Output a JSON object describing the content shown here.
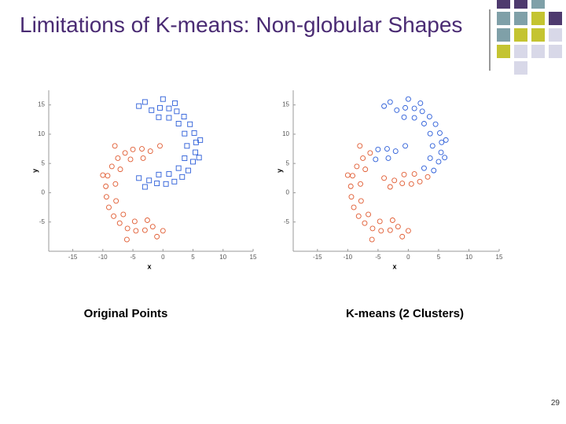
{
  "slide": {
    "title": "Limitations of K-means: Non-globular Shapes",
    "page_number": "29"
  },
  "chart_data": [
    {
      "type": "scatter",
      "caption": "Original Points",
      "xlabel": "x",
      "ylabel": "y",
      "xlim": [
        -19,
        15
      ],
      "ylim": [
        -10,
        17.5
      ],
      "xticks": [
        -15,
        -10,
        -5,
        0,
        5,
        10,
        15
      ],
      "yticks": [
        -5,
        0,
        5,
        10,
        15
      ],
      "series": [
        {
          "color": "#2a5cd8",
          "marker": "square",
          "x": [
            -1.9,
            -0.5,
            1,
            2.3,
            3.5,
            4.5,
            5.2,
            5.5,
            5.4,
            5,
            4.2,
            3.2,
            1.9,
            0.5,
            -1,
            -2.3,
            -0.7,
            1,
            2.6,
            3.6,
            4,
            3.6,
            2.6,
            1,
            -0.7,
            -4,
            -3,
            0,
            2,
            6.2,
            6,
            -3,
            -4
          ],
          "values": [
            14.1,
            14.5,
            14.4,
            13.9,
            13,
            11.7,
            10.2,
            8.6,
            6.9,
            5.3,
            3.8,
            2.7,
            1.9,
            1.5,
            1.6,
            2.1,
            12.9,
            12.8,
            11.8,
            10.1,
            8,
            5.9,
            4.2,
            3.2,
            3.1,
            14.8,
            15.5,
            16,
            15.3,
            9,
            6,
            1,
            2.5
          ]
        },
        {
          "color": "#e05a30",
          "marker": "circle",
          "x": [
            -2.1,
            -3.5,
            -5,
            -6.3,
            -7.5,
            -8.5,
            -9.2,
            -9.5,
            -9.4,
            -9,
            -8.2,
            -7.2,
            -5.9,
            -4.5,
            -3,
            -1.7,
            -3.3,
            -5.4,
            -7.1,
            -7.9,
            -7.8,
            -6.6,
            -4.7,
            -2.6,
            -0.5,
            -1,
            0,
            -6,
            -10,
            -8
          ],
          "values": [
            7.1,
            7.5,
            7.4,
            6.8,
            5.9,
            4.5,
            2.9,
            1.1,
            -0.7,
            -2.5,
            -4,
            -5.2,
            -6.1,
            -6.5,
            -6.4,
            -5.8,
            5.9,
            5.7,
            4,
            1.5,
            -1.4,
            -3.7,
            -4.9,
            -4.7,
            8,
            -7.5,
            -6.5,
            -8,
            3,
            8
          ]
        }
      ]
    },
    {
      "type": "scatter",
      "caption": "K-means (2 Clusters)",
      "xlabel": "x",
      "ylabel": "y",
      "xlim": [
        -19,
        15
      ],
      "ylim": [
        -10,
        17.5
      ],
      "xticks": [
        -15,
        -10,
        -5,
        0,
        5,
        10,
        15
      ],
      "yticks": [
        -5,
        0,
        5,
        10,
        15
      ],
      "series": [
        {
          "color": "#2a5cd8",
          "marker": "circle",
          "x": [
            -1.9,
            -0.5,
            1,
            2.3,
            3.5,
            4.5,
            5.2,
            5.5,
            5.4,
            5,
            4.2,
            2.6,
            3.6,
            4,
            3.6,
            2.6,
            -4,
            -3,
            0,
            2,
            6.2,
            6,
            -0.7,
            1,
            -2.1,
            -3.5,
            -5,
            -3.3,
            -5.4,
            -0.5
          ],
          "values": [
            14.1,
            14.5,
            14.4,
            13.9,
            13,
            11.7,
            10.2,
            8.6,
            6.9,
            5.3,
            3.8,
            11.8,
            10.1,
            8,
            5.9,
            4.2,
            14.8,
            15.5,
            16,
            15.3,
            9,
            6,
            12.9,
            12.8,
            7.1,
            7.5,
            7.4,
            5.9,
            5.7,
            8
          ]
        },
        {
          "color": "#e05a30",
          "marker": "circle",
          "x": [
            3.2,
            1.9,
            0.5,
            -1,
            -2.3,
            -0.7,
            1,
            -3,
            -4,
            -6.3,
            -7.5,
            -8.5,
            -9.2,
            -9.5,
            -9.4,
            -9,
            -8.2,
            -7.2,
            -5.9,
            -4.5,
            -3,
            -1.7,
            -7.1,
            -7.9,
            -7.8,
            -6.6,
            -4.7,
            -2.6,
            -1,
            0,
            -6,
            -10,
            -8
          ],
          "values": [
            2.7,
            1.9,
            1.5,
            1.6,
            2.1,
            3.1,
            3.2,
            1,
            2.5,
            6.8,
            5.9,
            4.5,
            2.9,
            1.1,
            -0.7,
            -2.5,
            -4,
            -5.2,
            -6.1,
            -6.5,
            -6.4,
            -5.8,
            4,
            1.5,
            -1.4,
            -3.7,
            -4.9,
            -4.7,
            -7.5,
            -6.5,
            -8,
            3,
            8
          ]
        }
      ]
    }
  ]
}
